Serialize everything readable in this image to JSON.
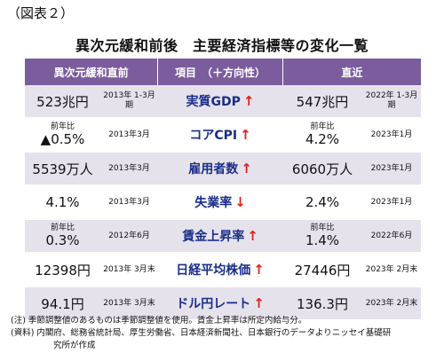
{
  "figure_label": "（図表２）",
  "title": "異次元緩和前後　主要経済指標等の変化一覧",
  "headers": {
    "before": "異次元緩和直前",
    "item": "項目　（＋方向性）",
    "recent": "直近"
  },
  "rows": [
    {
      "before_pre": "",
      "before_value": "523兆円",
      "before_date": "2013年 1-3月期",
      "item": "実質GDP",
      "arrow": "↑",
      "recent_pre": "",
      "recent_value": "547兆円",
      "recent_date": "2022年 1-3月期"
    },
    {
      "before_pre": "前年比",
      "before_value": "▲0.5%",
      "before_date": "2013年3月",
      "item": "コアCPI",
      "arrow": "↑",
      "recent_pre": "前年比",
      "recent_value": "4.2%",
      "recent_date": "2023年1月"
    },
    {
      "before_pre": "",
      "before_value": "5539万人",
      "before_date": "2013年3月",
      "item": "雇用者数",
      "arrow": "↑",
      "recent_pre": "",
      "recent_value": "6060万人",
      "recent_date": "2023年1月"
    },
    {
      "before_pre": "",
      "before_value": "4.1%",
      "before_date": "2013年3月",
      "item": "失業率",
      "arrow": "↓",
      "recent_pre": "",
      "recent_value": "2.4%",
      "recent_date": "2023年1月"
    },
    {
      "before_pre": "前年比",
      "before_value": "0.3%",
      "before_date": "2012年6月",
      "item": "賃金上昇率",
      "arrow": "↑",
      "recent_pre": "前年比",
      "recent_value": "1.4%",
      "recent_date": "2022年6月"
    },
    {
      "before_pre": "",
      "before_value": "12398円",
      "before_date": "2013年 3月末",
      "item": "日経平均株価",
      "arrow": "↑",
      "recent_pre": "",
      "recent_value": "27446円",
      "recent_date": "2023年 2月末"
    },
    {
      "before_pre": "",
      "before_value": "94.1円",
      "before_date": "2013年 3月末",
      "item": "ドル円レート",
      "arrow": "↑",
      "recent_pre": "",
      "recent_value": "136.3円",
      "recent_date": "2023年 2月末"
    }
  ],
  "notes": {
    "note1": "(注) 季節調整値のあるものは季節調整値を使用。賃金上昇率は所定内給与分。",
    "note2": "(資料) 内閣府、総務省統計局、厚生労働省、日本経済新聞社、日本銀行のデータよりニッセイ基礎研",
    "note3": "究所が作成"
  }
}
